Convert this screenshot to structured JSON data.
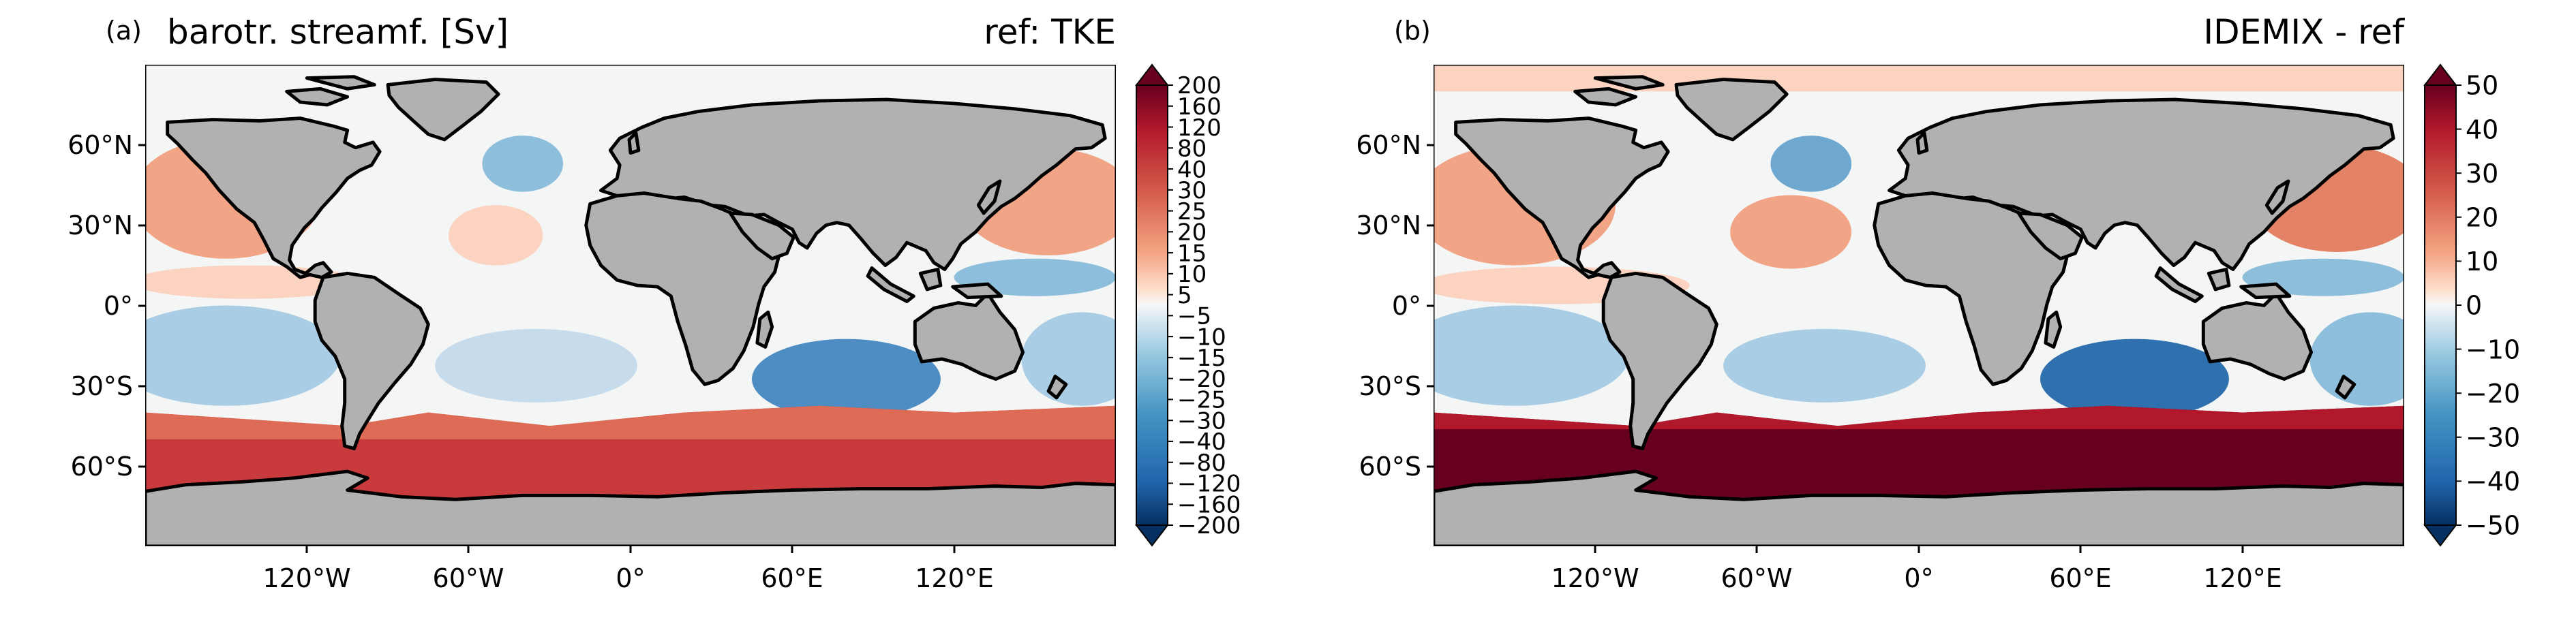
{
  "panels": [
    {
      "id": "a",
      "letter": "(a)",
      "title_left": "barotr. streamf. [Sv]",
      "title_right": "ref: TKE",
      "colorbar": {
        "ticks": [
          "200",
          "160",
          "120",
          "80",
          "40",
          "30",
          "25",
          "20",
          "15",
          "10",
          "5",
          "−5",
          "−10",
          "−15",
          "−20",
          "−25",
          "−30",
          "−40",
          "−80",
          "−120",
          "−160",
          "−200"
        ],
        "extend": "both",
        "colormap": "RdBu_r"
      }
    },
    {
      "id": "b",
      "letter": "(b)",
      "title_left": "",
      "title_right": "IDEMIX - ref",
      "colorbar": {
        "ticks": [
          "50",
          "40",
          "30",
          "20",
          "10",
          "0",
          "−10",
          "−20",
          "−30",
          "−40",
          "−50"
        ],
        "extend": "both",
        "colormap": "RdBu_r"
      }
    }
  ],
  "axes": {
    "lat_ticks": [
      "60°N",
      "30°N",
      "0°",
      "30°S",
      "60°S"
    ],
    "lon_ticks": [
      "120°W",
      "60°W",
      "0°",
      "60°E",
      "120°E"
    ]
  },
  "colors": {
    "land": "#b1b1b1",
    "coast": "#000000",
    "neutral_ocean": "#f4f5f5",
    "red_strong": "#67001f",
    "red_mid": "#c93a3d",
    "red_light": "#f2a487",
    "blue_light": "#c6dcec",
    "blue_mid": "#4e8dc3",
    "blue_strong": "#084a8f"
  }
}
